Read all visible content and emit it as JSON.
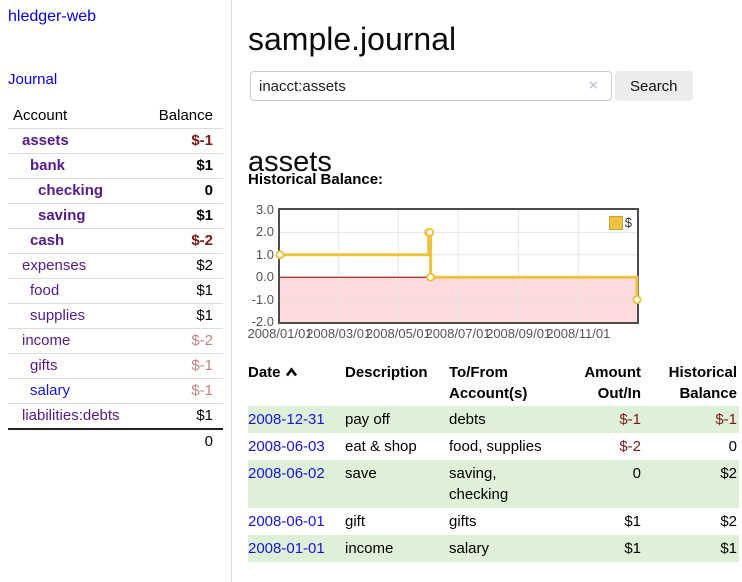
{
  "palette": {
    "purple": "#551a8b",
    "blue": "#1515dd",
    "negative": "#801515",
    "negative_dim": "#c48383",
    "row_green": "#dff0d8",
    "chart_yellow": "#edc240",
    "chart_pink": "#fbdbdb",
    "zero_line": "#8b0000",
    "grid": "#e6e6e6"
  },
  "sidebar": {
    "brand": "hledger-web",
    "journal_link": "Journal",
    "accounts_header": {
      "account": "Account",
      "balance": "Balance"
    },
    "accounts": [
      {
        "name": "assets",
        "balance": "$-1",
        "indent": 1,
        "bold": true,
        "balance_style": "negative",
        "link_color": "purple"
      },
      {
        "name": "bank",
        "balance": "$1",
        "indent": 2,
        "bold": true,
        "balance_style": "normal",
        "link_color": "purple"
      },
      {
        "name": "checking",
        "balance": "0",
        "indent": 3,
        "bold": true,
        "balance_style": "normal",
        "link_color": "purple"
      },
      {
        "name": "saving",
        "balance": "$1",
        "indent": 3,
        "bold": true,
        "balance_style": "normal",
        "link_color": "purple"
      },
      {
        "name": "cash",
        "balance": "$-2",
        "indent": 2,
        "bold": true,
        "balance_style": "negative",
        "link_color": "purple"
      },
      {
        "name": "expenses",
        "balance": "$2",
        "indent": 1,
        "bold": false,
        "balance_style": "normal",
        "link_color": "purple"
      },
      {
        "name": "food",
        "balance": "$1",
        "indent": 2,
        "bold": false,
        "balance_style": "normal",
        "link_color": "purple"
      },
      {
        "name": "supplies",
        "balance": "$1",
        "indent": 2,
        "bold": false,
        "balance_style": "normal",
        "link_color": "purple"
      },
      {
        "name": "income",
        "balance": "$-2",
        "indent": 1,
        "bold": false,
        "balance_style": "negative_dim",
        "link_color": "purple"
      },
      {
        "name": "gifts",
        "balance": "$-1",
        "indent": 2,
        "bold": false,
        "balance_style": "negative_dim",
        "link_color": "purple"
      },
      {
        "name": "salary",
        "balance": "$-1",
        "indent": 2,
        "bold": false,
        "balance_style": "negative_dim",
        "link_color": "blue"
      },
      {
        "name": "liabilities:debts",
        "balance": "$1",
        "indent": 1,
        "bold": false,
        "balance_style": "normal",
        "link_color": "purple"
      }
    ],
    "total": "0"
  },
  "main": {
    "title": "sample.journal",
    "search": {
      "value": "inacct:assets",
      "clear_icon": "×",
      "search_button": "Search",
      "help_button": "?"
    },
    "account_heading": "assets",
    "section_label": "Historical Balance:"
  },
  "chart_data": {
    "type": "line",
    "step": true,
    "title": "Historical Balance of assets",
    "legend": [
      {
        "label": "$",
        "color": "#edc240"
      }
    ],
    "legend_position": "top-right",
    "grid": true,
    "negative_region_shaded": true,
    "x_range": [
      "2008-01-01",
      "2008-12-31"
    ],
    "x_span_days": 365,
    "ylim": [
      -2.0,
      3.0
    ],
    "yticks": [
      {
        "value": 3,
        "label": "3.0"
      },
      {
        "value": 2,
        "label": "2.0"
      },
      {
        "value": 1,
        "label": "1.0"
      },
      {
        "value": 0,
        "label": "0.0"
      },
      {
        "value": -1,
        "label": "-1.0"
      },
      {
        "value": -2,
        "label": "-2.0"
      }
    ],
    "xticks": [
      {
        "day": 0,
        "label": "2008/01/01"
      },
      {
        "day": 60,
        "label": "2008/03/01"
      },
      {
        "day": 121,
        "label": "2008/05/01"
      },
      {
        "day": 182,
        "label": "2008/07/01"
      },
      {
        "day": 244,
        "label": "2008/09/01"
      },
      {
        "day": 305,
        "label": "2008/11/01"
      }
    ],
    "series": [
      {
        "name": "$",
        "points": [
          {
            "date": "2008-01-01",
            "day": 0,
            "value": 1
          },
          {
            "date": "2008-06-01",
            "day": 152,
            "value": 2
          },
          {
            "date": "2008-06-02",
            "day": 153,
            "value": 2
          },
          {
            "date": "2008-06-03",
            "day": 154,
            "value": 0
          },
          {
            "date": "2008-12-31",
            "day": 365,
            "value": -1
          }
        ]
      }
    ]
  },
  "register": {
    "headers": {
      "date": "Date",
      "description": "Description",
      "accounts": "To/From Account(s)",
      "amount": "Amount Out/In",
      "balance": "Historical Balance"
    },
    "sort": {
      "column": "date",
      "direction": "ascending"
    },
    "rows": [
      {
        "date": "2008-12-31",
        "description": "pay off",
        "accounts": "debts",
        "amount": "$-1",
        "amount_style": "negative",
        "balance": "$-1",
        "balance_style": "negative"
      },
      {
        "date": "2008-06-03",
        "description": "eat & shop",
        "accounts": "food, supplies",
        "amount": "$-2",
        "amount_style": "negative",
        "balance": "0",
        "balance_style": "normal"
      },
      {
        "date": "2008-06-02",
        "description": "save",
        "accounts": "saving,\nchecking",
        "amount": "0",
        "amount_style": "normal",
        "balance": "$2",
        "balance_style": "normal"
      },
      {
        "date": "2008-06-01",
        "description": "gift",
        "accounts": "gifts",
        "amount": "$1",
        "amount_style": "normal",
        "balance": "$2",
        "balance_style": "normal"
      },
      {
        "date": "2008-01-01",
        "description": "income",
        "accounts": "salary",
        "amount": "$1",
        "amount_style": "normal",
        "balance": "$1",
        "balance_style": "normal"
      }
    ]
  }
}
